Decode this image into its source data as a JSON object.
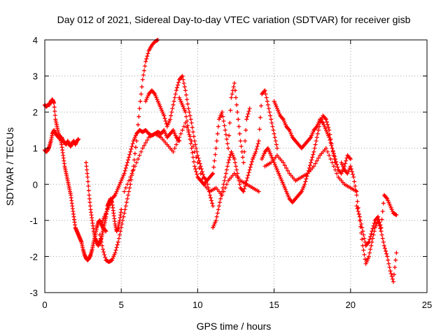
{
  "chart_data": {
    "type": "scatter",
    "title": "Day 012 of 2021, Sidereal Day-to-day VTEC variation (SDTVAR) for receiver gisb",
    "xlabel": "GPS time / hours",
    "ylabel": "SDTVAR / TECUs",
    "xlim": [
      0,
      25
    ],
    "ylim": [
      -3,
      4
    ],
    "xticks": [
      "0",
      "5",
      "10",
      "15",
      "20",
      "25"
    ],
    "yticks": [
      "-3",
      "-2",
      "-1",
      "0",
      "1",
      "2",
      "3",
      "4"
    ],
    "grid": true,
    "marker": "plus",
    "color": "#ff0000",
    "series": [
      {
        "x": [
          0,
          0.1,
          0.2,
          0.3,
          0.4,
          0.5,
          0.6,
          0.7,
          0.8,
          0.9,
          1.0,
          1.1,
          1.2,
          1.3,
          1.4,
          1.5,
          1.6,
          1.7,
          1.8,
          1.9,
          2.0,
          2.1,
          2.2
        ],
        "y": [
          0.95,
          0.9,
          0.95,
          1.05,
          1.2,
          1.4,
          1.5,
          1.4,
          1.35,
          1.3,
          1.25,
          1.3,
          1.2,
          1.15,
          1.1,
          1.2,
          1.1,
          1.05,
          1.15,
          1.2,
          1.1,
          1.2,
          1.25
        ]
      },
      {
        "x": [
          0,
          0.1,
          0.2,
          0.3,
          0.4,
          0.5,
          0.6,
          0.7,
          0.8,
          0.9,
          1.0,
          1.1,
          1.2,
          1.3,
          1.4,
          1.5,
          1.6,
          1.7,
          1.8,
          1.9,
          2.0,
          2.1,
          2.2,
          2.3,
          2.4,
          2.5,
          2.6,
          2.7,
          2.8,
          2.9,
          3.0,
          3.1,
          3.2,
          3.3,
          3.4,
          3.5,
          3.6,
          3.7,
          3.8,
          3.9,
          4.0
        ],
        "y": [
          2.2,
          2.15,
          2.2,
          2.2,
          2.3,
          2.35,
          2.25,
          1.8,
          1.6,
          1.4,
          1.3,
          1.1,
          0.8,
          0.5,
          0.3,
          0.1,
          -0.1,
          -0.3,
          -0.6,
          -0.9,
          -1.2,
          -1.3,
          -1.4,
          -1.5,
          -1.6,
          -1.8,
          -1.95,
          -2.05,
          -2.1,
          -2.05,
          -1.95,
          -1.8,
          -1.6,
          -1.4,
          -1.2,
          -1.05,
          -1.0,
          -1.1,
          -1.2,
          -1.25,
          -1.3
        ]
      },
      {
        "x": [
          2.7,
          2.8,
          2.9,
          3.0,
          3.1,
          3.2,
          3.3,
          3.4,
          3.5,
          3.6,
          3.7,
          3.8,
          3.9,
          4.0,
          4.1,
          4.2,
          4.3,
          4.4,
          4.5,
          4.6,
          4.7,
          4.8,
          4.9,
          5.0
        ],
        "y": [
          0.6,
          0.2,
          -0.3,
          -0.7,
          -1.0,
          -1.3,
          -1.5,
          -1.6,
          -1.7,
          -1.6,
          -1.5,
          -1.3,
          -1.1,
          -0.9,
          -0.6,
          -0.5,
          -0.4,
          -0.5,
          -0.8,
          -1.1,
          -1.3,
          -1.2,
          -1.0,
          -0.7
        ]
      },
      {
        "x": [
          3.6,
          3.8,
          4.0,
          4.2,
          4.4,
          4.6,
          4.8,
          5.0,
          5.2,
          5.4,
          5.6,
          5.8,
          6.0,
          6.2,
          6.4,
          6.6,
          6.8,
          7.0,
          7.2,
          7.4
        ],
        "y": [
          -1.4,
          -1.8,
          -2.1,
          -2.15,
          -2.1,
          -1.9,
          -1.6,
          -1.2,
          -0.8,
          -0.4,
          0.0,
          0.5,
          1.2,
          2.1,
          2.9,
          3.4,
          3.7,
          3.85,
          3.95,
          4.0
        ]
      },
      {
        "x": [
          3.8,
          4.0,
          4.2,
          4.4,
          4.6,
          4.8,
          5.0,
          5.2,
          5.4,
          5.6,
          5.8,
          6.0,
          6.2,
          6.4,
          6.6,
          6.8,
          7.0,
          7.2,
          7.4,
          7.6,
          7.8,
          8.0,
          8.2,
          8.4,
          8.6,
          8.8
        ],
        "y": [
          -1.0,
          -0.8,
          -0.6,
          -0.4,
          -0.3,
          -0.1,
          0.1,
          0.3,
          0.6,
          0.9,
          1.2,
          1.4,
          1.5,
          1.45,
          1.5,
          1.4,
          1.35,
          1.4,
          1.45,
          1.4,
          1.5,
          1.3,
          1.4,
          1.5,
          1.3,
          1.2
        ]
      },
      {
        "x": [
          6.6,
          6.8,
          7.0,
          7.2,
          7.4,
          7.6,
          7.8,
          8.0,
          8.2,
          8.4,
          8.6,
          8.8,
          9.0,
          9.2,
          9.4,
          9.6,
          9.8,
          10.0,
          10.2,
          10.4,
          10.6,
          10.8,
          11.0
        ],
        "y": [
          2.3,
          2.5,
          2.6,
          2.5,
          2.3,
          2.1,
          1.9,
          1.6,
          1.8,
          2.2,
          2.6,
          2.9,
          3.0,
          2.6,
          2.1,
          1.7,
          1.2,
          0.8,
          0.5,
          0.2,
          0.1,
          -0.3,
          -0.6
        ]
      },
      {
        "x": [
          5.2,
          5.6,
          6.0,
          6.4,
          6.8,
          7.2,
          7.6,
          8.0,
          8.4,
          8.8,
          9.2,
          9.6,
          10.0,
          10.4,
          10.8,
          11.2,
          11.6,
          12.0,
          12.4,
          12.8,
          13.2,
          13.6,
          14.0
        ],
        "y": [
          -0.2,
          0.2,
          0.6,
          1.0,
          1.3,
          1.4,
          1.3,
          1.1,
          0.9,
          1.3,
          1.7,
          1.2,
          0.6,
          0.0,
          -0.2,
          -0.1,
          -0.3,
          0.1,
          0.3,
          0.1,
          0.0,
          -0.1,
          -0.2
        ]
      },
      {
        "x": [
          8.8,
          9.0,
          9.2,
          9.4,
          9.6,
          9.8,
          10.0,
          10.2,
          10.4,
          10.6,
          10.8,
          11.0,
          11.2,
          11.4,
          11.6,
          11.8,
          12.0,
          12.2,
          12.4,
          12.6,
          12.8,
          13.0,
          13.2,
          13.4
        ],
        "y": [
          2.4,
          2.2,
          2.0,
          1.5,
          1.0,
          0.5,
          0.2,
          0.1,
          0.0,
          0.1,
          0.2,
          0.3,
          1.0,
          1.8,
          2.0,
          1.5,
          1.0,
          2.4,
          2.8,
          2.0,
          1.2,
          0.6,
          1.8,
          2.1
        ]
      },
      {
        "x": [
          11.0,
          11.2,
          11.4,
          11.6,
          11.8,
          12.0,
          12.2,
          12.4,
          12.6,
          12.8,
          13.0,
          13.2,
          13.4,
          13.6,
          13.8,
          14.0,
          14.2,
          14.4,
          14.6,
          14.8,
          15.0,
          15.2
        ],
        "y": [
          -1.2,
          -1.0,
          -0.6,
          -0.2,
          0.2,
          0.6,
          0.9,
          0.7,
          0.3,
          -0.1,
          -0.2,
          0.1,
          0.4,
          0.7,
          0.9,
          1.2,
          2.5,
          2.6,
          2.2,
          1.8,
          1.4,
          1.0
        ]
      },
      {
        "x": [
          14.2,
          14.4,
          14.6,
          14.8,
          15.0,
          15.2,
          15.4,
          15.6,
          15.8,
          16.0,
          16.2,
          16.4,
          16.6,
          16.8,
          17.0,
          17.2,
          17.4,
          17.6,
          17.8,
          18.0,
          18.2,
          18.4,
          18.6,
          18.8,
          19.0
        ],
        "y": [
          0.7,
          0.9,
          1.0,
          0.8,
          0.6,
          0.4,
          0.2,
          0.0,
          -0.2,
          -0.4,
          -0.5,
          -0.4,
          -0.3,
          -0.2,
          0.0,
          0.3,
          0.6,
          0.9,
          1.3,
          1.7,
          1.9,
          1.8,
          1.5,
          1.0,
          0.6
        ]
      },
      {
        "x": [
          15.0,
          15.2,
          15.4,
          15.6,
          15.8,
          16.0,
          16.2,
          16.4,
          16.6,
          16.8,
          17.0,
          17.2,
          17.4,
          17.6,
          17.8,
          18.0,
          18.2,
          18.4,
          18.6,
          18.8,
          19.0,
          19.2,
          19.4,
          19.6,
          19.8,
          20.0
        ],
        "y": [
          2.3,
          2.1,
          1.9,
          1.8,
          1.6,
          1.5,
          1.3,
          1.2,
          1.1,
          1.0,
          1.1,
          1.2,
          1.3,
          1.5,
          1.6,
          1.8,
          1.7,
          1.5,
          1.3,
          1.0,
          0.7,
          0.4,
          0.3,
          0.5,
          0.8,
          0.7
        ]
      },
      {
        "x": [
          14.4,
          14.8,
          15.2,
          15.6,
          16.0,
          16.4,
          16.8,
          17.2,
          17.6,
          18.0,
          18.4,
          18.8,
          19.2,
          19.6,
          20.0,
          20.4
        ],
        "y": [
          0.5,
          0.6,
          0.8,
          0.6,
          0.3,
          0.1,
          0.2,
          0.3,
          0.5,
          0.8,
          1.0,
          0.6,
          0.2,
          0.0,
          -0.1,
          -0.2
        ]
      },
      {
        "x": [
          19.4,
          19.6,
          19.8,
          20.0,
          20.2,
          20.4,
          20.6,
          20.8,
          21.0,
          21.2,
          21.4,
          21.6,
          21.8,
          22.0,
          22.2,
          22.4,
          22.6,
          22.8,
          23.0
        ],
        "y": [
          0.6,
          0.4,
          0.3,
          0.5,
          0.2,
          -0.3,
          -1.0,
          -1.7,
          -2.2,
          -2.0,
          -1.6,
          -1.2,
          -1.0,
          -1.3,
          -1.7,
          -2.0,
          -2.4,
          -2.7,
          -1.9
        ]
      },
      {
        "x": [
          20.4,
          20.6,
          20.8,
          21.0,
          21.2,
          21.4,
          21.6,
          21.8,
          22.0,
          22.2,
          22.4,
          22.6,
          22.8,
          23.0
        ],
        "y": [
          -0.6,
          -0.9,
          -1.3,
          -1.7,
          -1.6,
          -1.3,
          -1.0,
          -0.9,
          -1.2,
          -0.3,
          -0.4,
          -0.6,
          -0.8,
          -0.85
        ]
      }
    ]
  }
}
